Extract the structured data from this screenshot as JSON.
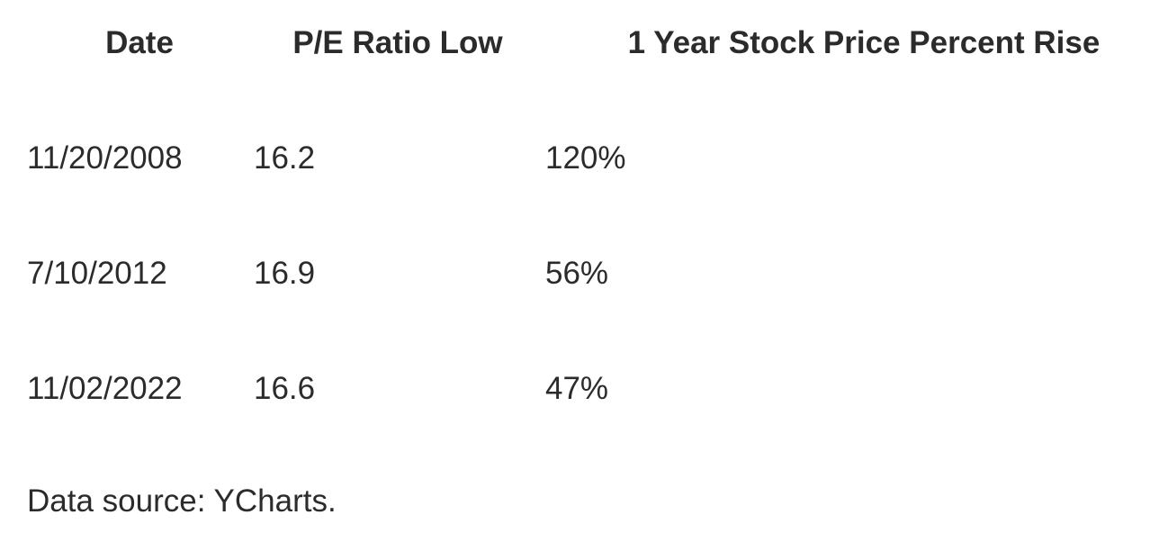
{
  "table": {
    "headers": [
      "Date",
      "P/E Ratio Low",
      "1 Year Stock Price Percent Rise"
    ],
    "rows": [
      [
        "11/20/2008",
        "16.2",
        "120%"
      ],
      [
        "7/10/2012",
        "16.9",
        "56%"
      ],
      [
        "11/02/2022",
        "16.6",
        "47%"
      ]
    ]
  },
  "footer": {
    "source": "Data source: YCharts."
  }
}
